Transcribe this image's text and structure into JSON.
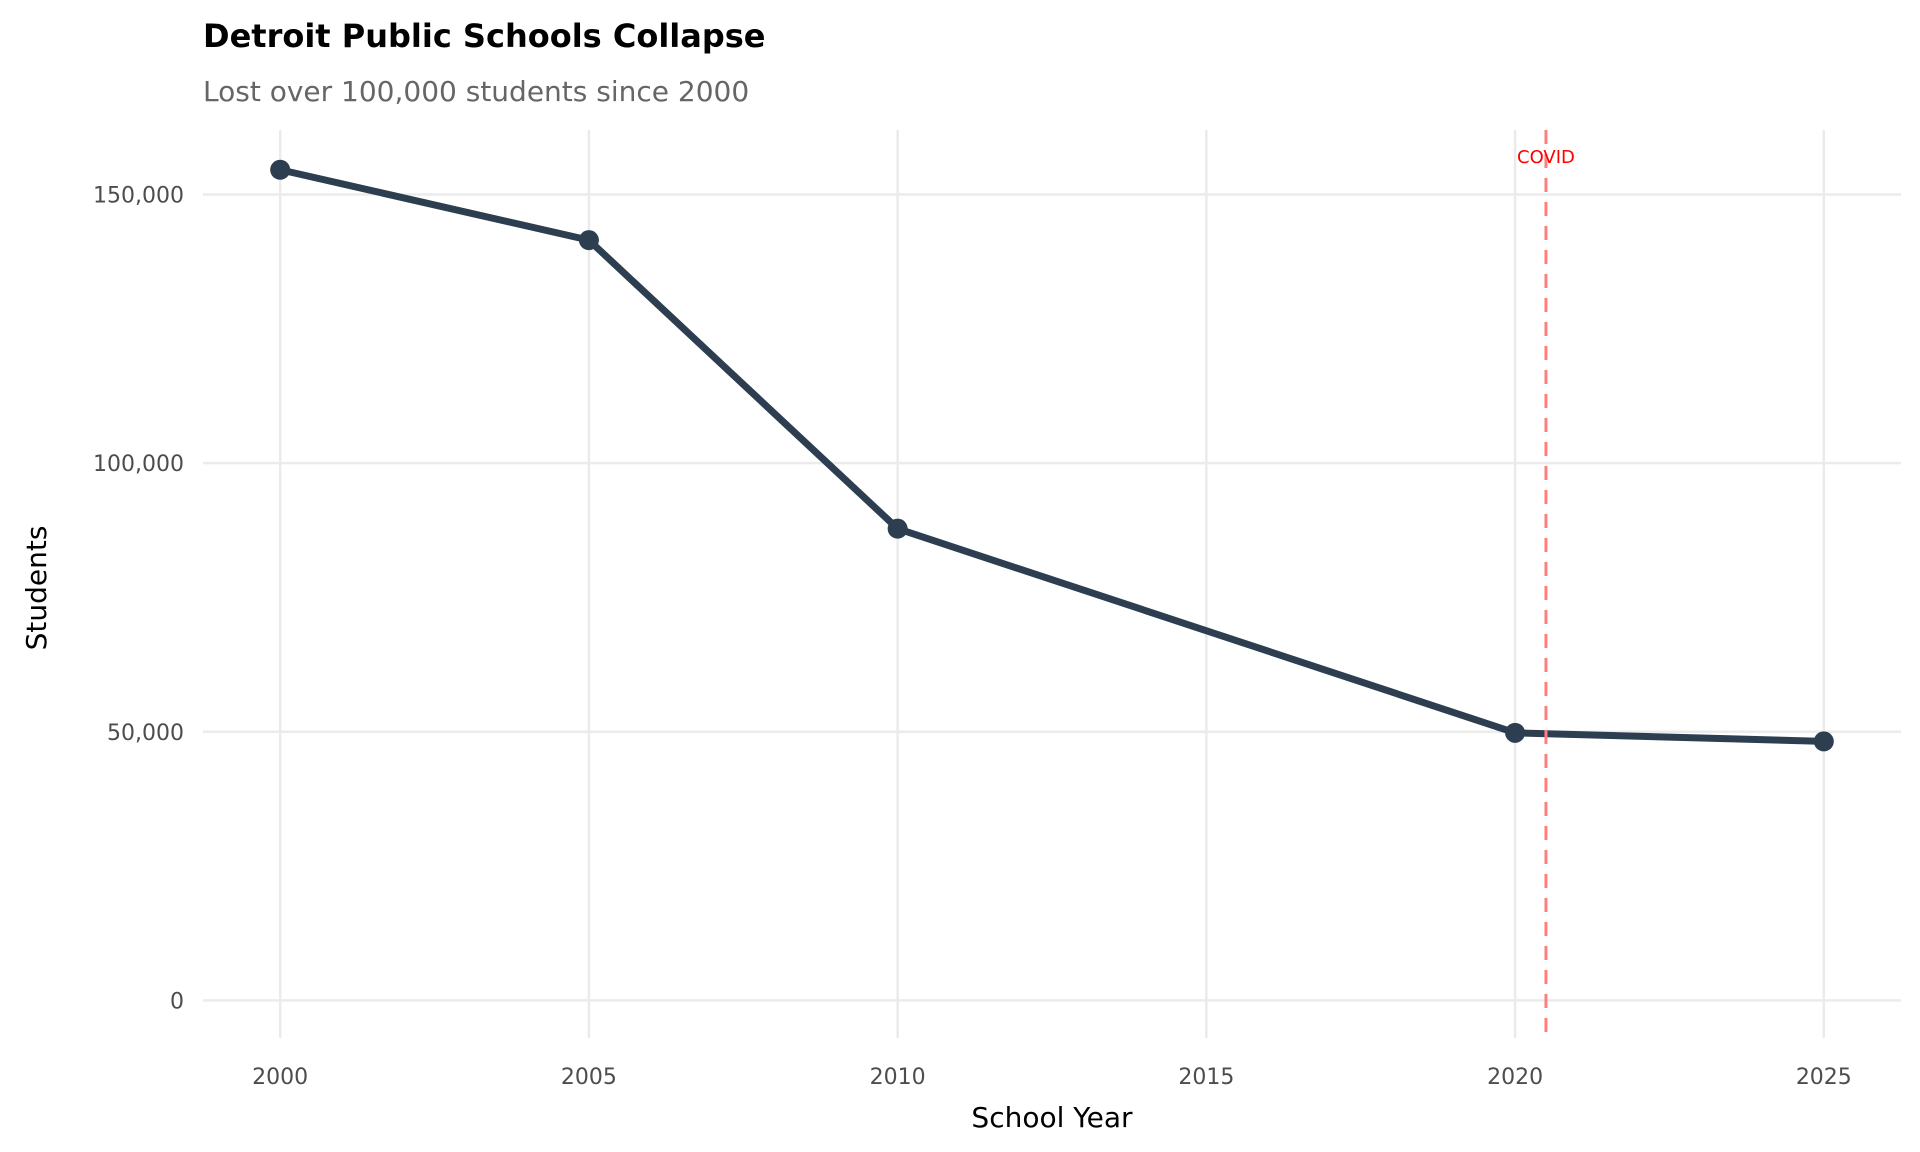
{
  "chart_data": {
    "type": "line",
    "title": "Detroit Public Schools Collapse",
    "subtitle": "Lost over 100,000 students since 2000",
    "xlabel": "School Year",
    "ylabel": "Students",
    "x": [
      2000,
      2005,
      2010,
      2020,
      2025
    ],
    "series": [
      {
        "name": "Students",
        "values": [
          154600,
          141500,
          87800,
          49800,
          48200
        ]
      }
    ],
    "xlim": [
      1998.75,
      2026.25
    ],
    "ylim": [
      -7000,
      162000
    ],
    "xticks": [
      2000,
      2005,
      2010,
      2015,
      2020,
      2025
    ],
    "xtick_labels": [
      "2000",
      "2005",
      "2010",
      "2015",
      "2020",
      "2025"
    ],
    "yticks": [
      0,
      50000,
      100000,
      150000
    ],
    "ytick_labels": [
      "0",
      "50,000",
      "100,000",
      "150,000"
    ],
    "grid": true,
    "annotations": [
      {
        "type": "vline",
        "x": 2020.5,
        "label": "COVID",
        "color": "#ff0000"
      }
    ],
    "colors": {
      "line": "#2c3e50",
      "grid": "#ebebeb",
      "vline": "#ff7f7f",
      "annotation": "#ff0000"
    }
  }
}
